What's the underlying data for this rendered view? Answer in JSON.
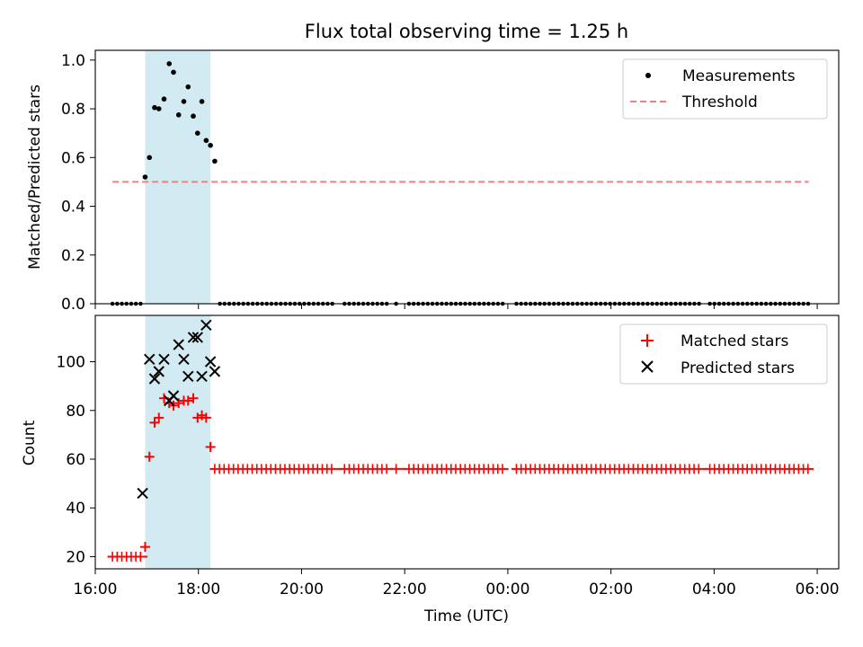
{
  "chart_data": [
    {
      "type": "scatter",
      "title": "Flux total observing time = 1.25 h",
      "ylabel": "Matched/Predicted stars",
      "ylim": [
        0.0,
        1.04
      ],
      "xlim": [
        "16:00",
        "06:25"
      ],
      "yticks": [
        0.0,
        0.2,
        0.4,
        0.6,
        0.8,
        1.0
      ],
      "ytick_labels": [
        "0.0",
        "0.2",
        "0.4",
        "0.6",
        "0.8",
        "1.0"
      ],
      "grid": false,
      "legend_position": "top-right",
      "highlight_span": {
        "x_start": "16:58",
        "x_end": "18:14",
        "color": "#add8e6"
      },
      "threshold": {
        "name": "Threshold",
        "y": 0.5,
        "x_start": "16:20",
        "x_end": "05:50",
        "color": "#f08080"
      },
      "series": [
        {
          "name": "Measurements",
          "color": "#000000",
          "marker": "dot",
          "points": [
            {
              "x": "16:58",
              "y": 0.52
            },
            {
              "x": "17:03",
              "y": 0.6
            },
            {
              "x": "17:09",
              "y": 0.805
            },
            {
              "x": "17:14",
              "y": 0.8
            },
            {
              "x": "17:20",
              "y": 0.84
            },
            {
              "x": "17:26",
              "y": 0.985
            },
            {
              "x": "17:31",
              "y": 0.95
            },
            {
              "x": "17:37",
              "y": 0.775
            },
            {
              "x": "17:43",
              "y": 0.83
            },
            {
              "x": "17:48",
              "y": 0.89
            },
            {
              "x": "17:54",
              "y": 0.77
            },
            {
              "x": "17:59",
              "y": 0.7
            },
            {
              "x": "18:04",
              "y": 0.83
            },
            {
              "x": "18:09",
              "y": 0.67
            },
            {
              "x": "18:14",
              "y": 0.65
            },
            {
              "x": "18:19",
              "y": 0.585
            }
          ],
          "zero_runs": [
            {
              "x_start": "16:20",
              "x_end": "16:55"
            },
            {
              "x_start": "18:25",
              "x_end": "20:40"
            },
            {
              "x_start": "20:50",
              "x_end": "21:40"
            },
            {
              "x_start": "21:50",
              "x_end": "21:55"
            },
            {
              "x_start": "22:05",
              "x_end": "23:55"
            },
            {
              "x_start": "00:10",
              "x_end": "03:45"
            },
            {
              "x_start": "03:55",
              "x_end": "05:50"
            }
          ]
        }
      ]
    },
    {
      "type": "scatter",
      "xlabel": "Time (UTC)",
      "ylabel": "Count",
      "ylim": [
        15,
        119
      ],
      "xlim": [
        "16:00",
        "06:25"
      ],
      "yticks": [
        20,
        40,
        60,
        80,
        100
      ],
      "ytick_labels": [
        "20",
        "40",
        "60",
        "80",
        "100"
      ],
      "xticks": [
        "16:00",
        "18:00",
        "20:00",
        "22:00",
        "00:00",
        "02:00",
        "04:00",
        "06:00"
      ],
      "grid": false,
      "legend_position": "top-right",
      "highlight_span": {
        "x_start": "16:58",
        "x_end": "18:14",
        "color": "#add8e6"
      },
      "series": [
        {
          "name": "Matched stars",
          "color": "#ff0000",
          "marker": "plus",
          "points": [
            {
              "x": "16:58",
              "y": 24
            },
            {
              "x": "17:03",
              "y": 61
            },
            {
              "x": "17:09",
              "y": 75
            },
            {
              "x": "17:14",
              "y": 77
            },
            {
              "x": "17:20",
              "y": 85
            },
            {
              "x": "17:26",
              "y": 83
            },
            {
              "x": "17:31",
              "y": 82
            },
            {
              "x": "17:37",
              "y": 83
            },
            {
              "x": "17:43",
              "y": 84
            },
            {
              "x": "17:48",
              "y": 84
            },
            {
              "x": "17:54",
              "y": 85
            },
            {
              "x": "17:59",
              "y": 77
            },
            {
              "x": "18:04",
              "y": 78
            },
            {
              "x": "18:09",
              "y": 77
            },
            {
              "x": "18:14",
              "y": 65
            }
          ],
          "runs": [
            {
              "x_start": "16:20",
              "x_end": "16:55",
              "y": 20
            },
            {
              "x_start": "18:19",
              "x_end": "20:40",
              "y": 56
            },
            {
              "x_start": "20:50",
              "x_end": "21:40",
              "y": 56
            },
            {
              "x_start": "21:50",
              "x_end": "21:55",
              "y": 56
            },
            {
              "x_start": "22:05",
              "x_end": "23:55",
              "y": 56
            },
            {
              "x_start": "00:10",
              "x_end": "03:45",
              "y": 56
            },
            {
              "x_start": "03:55",
              "x_end": "05:50",
              "y": 56
            }
          ]
        },
        {
          "name": "Predicted stars",
          "color": "#000000",
          "marker": "x",
          "points": [
            {
              "x": "16:55",
              "y": 46
            },
            {
              "x": "17:03",
              "y": 101
            },
            {
              "x": "17:09",
              "y": 93
            },
            {
              "x": "17:14",
              "y": 96
            },
            {
              "x": "17:20",
              "y": 101
            },
            {
              "x": "17:26",
              "y": 84
            },
            {
              "x": "17:31",
              "y": 86
            },
            {
              "x": "17:37",
              "y": 107
            },
            {
              "x": "17:43",
              "y": 101
            },
            {
              "x": "17:48",
              "y": 94
            },
            {
              "x": "17:54",
              "y": 110
            },
            {
              "x": "17:59",
              "y": 110
            },
            {
              "x": "18:04",
              "y": 94
            },
            {
              "x": "18:09",
              "y": 115
            },
            {
              "x": "18:14",
              "y": 100
            },
            {
              "x": "18:19",
              "y": 96
            }
          ]
        }
      ]
    }
  ]
}
